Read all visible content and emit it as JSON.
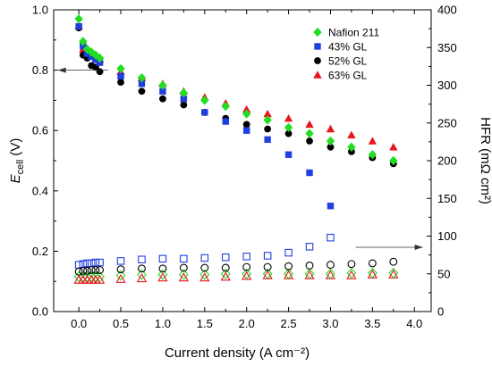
{
  "chart_data": {
    "type": "scatter",
    "xlabel": "Current density (A cm⁻²)",
    "ylabel_left": {
      "main": "E",
      "sub": "cell",
      "unit": " (V)"
    },
    "ylabel_right": "HFR (mΩ cm²)",
    "xlim": [
      -0.3,
      4.2
    ],
    "ylim_left": [
      0,
      1.0
    ],
    "ylim_right": [
      0,
      400
    ],
    "x_ticks": [
      "0.0",
      "0.5",
      "1.0",
      "1.5",
      "2.0",
      "2.5",
      "3.0",
      "3.5",
      "4.0"
    ],
    "y_left_ticks": [
      "0.0",
      "0.2",
      "0.4",
      "0.6",
      "0.8",
      "1.0"
    ],
    "y_right_ticks": [
      "0",
      "50",
      "100",
      "150",
      "200",
      "250",
      "300",
      "350",
      "400"
    ],
    "legend_position": "top-right",
    "grid": false,
    "series": [
      {
        "name": "Nafion 211",
        "marker": "diamond",
        "color": "#22DD22",
        "x": [
          0.0,
          0.05,
          0.1,
          0.15,
          0.2,
          0.25,
          0.5,
          0.75,
          1.0,
          1.25,
          1.5,
          1.75,
          2.0,
          2.25,
          2.5,
          2.75,
          3.0,
          3.25,
          3.5,
          3.75
        ],
        "ecell": [
          0.97,
          0.895,
          0.87,
          0.86,
          0.85,
          0.84,
          0.805,
          0.775,
          0.75,
          0.725,
          0.7,
          0.68,
          0.655,
          0.635,
          0.61,
          0.59,
          0.565,
          0.545,
          0.52,
          0.5
        ],
        "hfr": [
          46,
          46,
          46,
          46,
          46,
          46,
          48,
          49,
          49,
          49,
          49,
          50,
          50,
          50,
          50,
          50,
          50,
          51,
          51,
          51
        ]
      },
      {
        "name": "43% GL",
        "marker": "square",
        "color": "#1F3FE0",
        "x": [
          0.0,
          0.05,
          0.1,
          0.15,
          0.2,
          0.25,
          0.5,
          0.75,
          1.0,
          1.25,
          1.5,
          1.75,
          2.0,
          2.25,
          2.5,
          2.75,
          3.0
        ],
        "ecell": [
          0.945,
          0.88,
          0.855,
          0.845,
          0.835,
          0.825,
          0.78,
          0.755,
          0.73,
          0.705,
          0.66,
          0.63,
          0.6,
          0.57,
          0.52,
          0.46,
          0.35
        ],
        "hfr": [
          62,
          63,
          64,
          64,
          65,
          65,
          67,
          69,
          70,
          70,
          71,
          72,
          73,
          74,
          78,
          86,
          98
        ]
      },
      {
        "name": "52% GL",
        "marker": "circle",
        "color": "#000000",
        "x": [
          0.0,
          0.05,
          0.1,
          0.15,
          0.2,
          0.25,
          0.5,
          0.75,
          1.0,
          1.25,
          1.5,
          1.75,
          2.0,
          2.25,
          2.5,
          2.75,
          3.0,
          3.25,
          3.5,
          3.75
        ],
        "ecell": [
          0.94,
          0.85,
          0.84,
          0.815,
          0.81,
          0.795,
          0.76,
          0.73,
          0.705,
          0.685,
          0.66,
          0.64,
          0.62,
          0.605,
          0.59,
          0.565,
          0.545,
          0.53,
          0.51,
          0.49
        ],
        "hfr": [
          53,
          54,
          54,
          55,
          55,
          55,
          56,
          57,
          57,
          58,
          58,
          58,
          59,
          59,
          60,
          61,
          62,
          63,
          64,
          66
        ]
      },
      {
        "name": "63% GL",
        "marker": "triangle",
        "color": "#E8141E",
        "x": [
          0.0,
          0.05,
          0.1,
          0.15,
          0.2,
          0.25,
          0.5,
          0.75,
          1.0,
          1.25,
          1.5,
          1.75,
          2.0,
          2.25,
          2.5,
          2.75,
          3.0,
          3.25,
          3.5,
          3.75
        ],
        "ecell": [
          0.945,
          0.87,
          0.86,
          0.855,
          0.845,
          0.835,
          0.795,
          0.775,
          0.755,
          0.73,
          0.71,
          0.69,
          0.67,
          0.655,
          0.64,
          0.62,
          0.605,
          0.585,
          0.565,
          0.545
        ],
        "hfr": [
          42,
          42,
          42,
          42,
          42,
          42,
          43,
          44,
          45,
          45,
          45,
          46,
          47,
          48,
          48,
          48,
          48,
          48,
          49,
          49
        ]
      }
    ],
    "annotations": [
      {
        "axis": "left",
        "arrow": "left",
        "x_from": 0.35,
        "x_to": -0.25,
        "y": 0.8
      },
      {
        "axis": "right",
        "arrow": "right",
        "x_from": 3.3,
        "x_to": 4.1,
        "y": 0.213
      }
    ]
  }
}
